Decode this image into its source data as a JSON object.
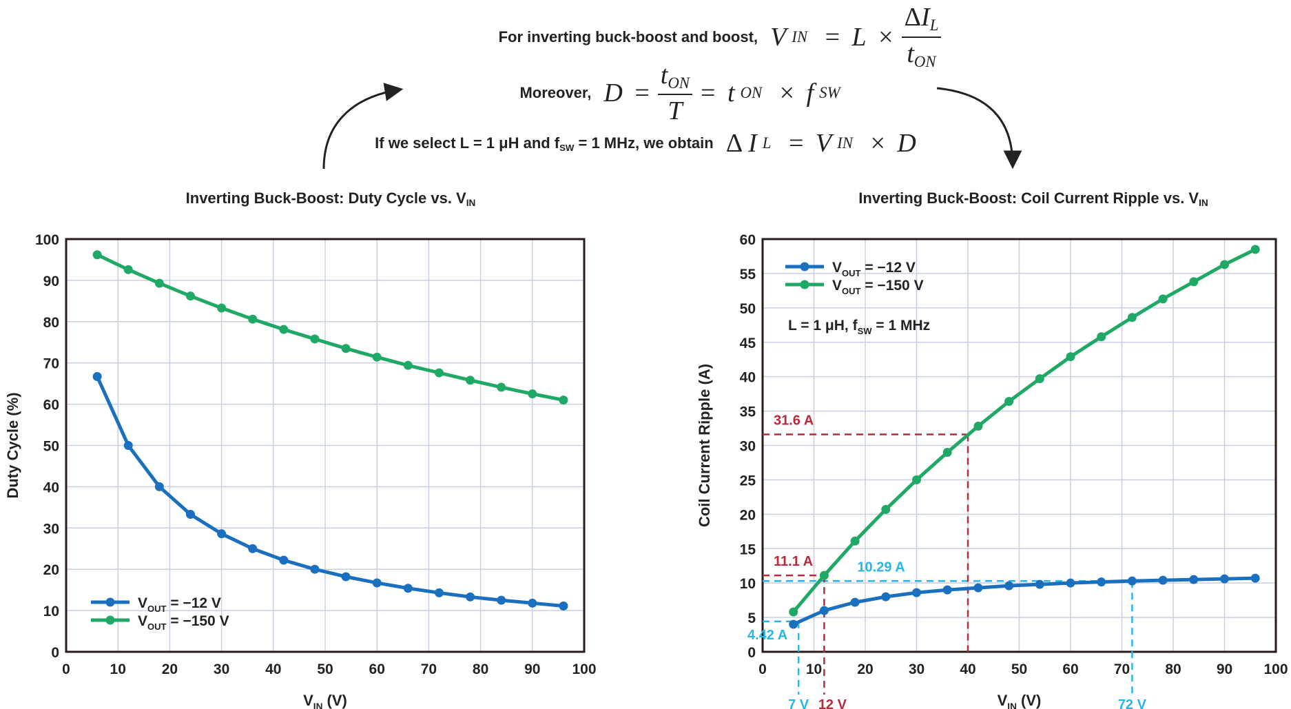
{
  "equations": {
    "line1_text": "For inverting buck-boost and boost,",
    "line2_text": "Moreover,",
    "line3_text_a": "If we select L = 1 μH and f",
    "line3_text_sub": "SW",
    "line3_text_b": " = 1 MHz, we obtain"
  },
  "colors": {
    "series_12": "#1a6fbf",
    "series_150": "#1fa866",
    "annotation_red": "#b52b3a",
    "annotation_blue": "#29b6e6",
    "grid": "#c9cfe0",
    "frame": "#2a1a1a"
  },
  "chart_data": [
    {
      "type": "line",
      "title": "Inverting Buck-Boost: Duty Cycle vs. V",
      "title_sub": "IN",
      "xlabel": "V",
      "xlabel_sub": "IN",
      "xlabel_suffix": " (V)",
      "ylabel": "Duty Cycle (%)",
      "xlim": [
        0,
        100
      ],
      "ylim": [
        0,
        100
      ],
      "xticks": [
        0,
        10,
        20,
        30,
        40,
        50,
        60,
        70,
        80,
        90,
        100
      ],
      "yticks": [
        0,
        10,
        20,
        30,
        40,
        50,
        60,
        70,
        80,
        90,
        100
      ],
      "grid": true,
      "legend_position": "bottom-left",
      "series": [
        {
          "name": "V",
          "name_sub": "OUT",
          "name_suffix": " = −12 V",
          "color": "#1a6fbf",
          "x": [
            6,
            12,
            18,
            24,
            30,
            36,
            42,
            48,
            54,
            60,
            66,
            72,
            78,
            84,
            90,
            96
          ],
          "y": [
            66.7,
            50,
            40,
            33.3,
            28.6,
            25,
            22.2,
            20,
            18.2,
            16.7,
            15.4,
            14.3,
            13.3,
            12.5,
            11.8,
            11.1
          ]
        },
        {
          "name": "V",
          "name_sub": "OUT",
          "name_suffix": " = −150 V",
          "color": "#1fa866",
          "x": [
            6,
            12,
            18,
            24,
            30,
            36,
            42,
            48,
            54,
            60,
            66,
            72,
            78,
            84,
            90,
            96
          ],
          "y": [
            96.2,
            92.6,
            89.3,
            86.2,
            83.3,
            80.6,
            78.1,
            75.8,
            73.5,
            71.4,
            69.4,
            67.6,
            65.8,
            64.1,
            62.5,
            61
          ]
        }
      ]
    },
    {
      "type": "line",
      "title": "Inverting Buck-Boost: Coil Current Ripple vs. V",
      "title_sub": "IN",
      "xlabel": "V",
      "xlabel_sub": "IN",
      "xlabel_suffix": " (V)",
      "ylabel": "Coil Current Ripple (A)",
      "xlim": [
        0,
        100
      ],
      "ylim": [
        0,
        60
      ],
      "xticks": [
        0,
        10,
        20,
        30,
        40,
        50,
        60,
        70,
        80,
        90,
        100
      ],
      "yticks": [
        0,
        5,
        10,
        15,
        20,
        25,
        30,
        35,
        40,
        45,
        50,
        55,
        60
      ],
      "grid": true,
      "legend_position": "top-left",
      "note": "L = 1 μH, f",
      "note_sub": "SW",
      "note_suffix": " = 1 MHz",
      "series": [
        {
          "name": "V",
          "name_sub": "OUT",
          "name_suffix": " = −12 V",
          "color": "#1a6fbf",
          "x": [
            6,
            12,
            18,
            24,
            30,
            36,
            42,
            48,
            54,
            60,
            66,
            72,
            78,
            84,
            90,
            96
          ],
          "y": [
            4.0,
            6.0,
            7.2,
            8.0,
            8.6,
            9.0,
            9.3,
            9.6,
            9.8,
            10.0,
            10.15,
            10.3,
            10.4,
            10.5,
            10.6,
            10.7
          ]
        },
        {
          "name": "V",
          "name_sub": "OUT",
          "name_suffix": " = −150 V",
          "color": "#1fa866",
          "x": [
            6,
            12,
            18,
            24,
            30,
            36,
            42,
            48,
            54,
            60,
            66,
            72,
            78,
            84,
            90,
            96
          ],
          "y": [
            5.8,
            11.1,
            16.1,
            20.7,
            25.0,
            29.0,
            32.8,
            36.4,
            39.7,
            42.9,
            45.8,
            48.6,
            51.3,
            53.8,
            56.3,
            58.5
          ]
        }
      ],
      "annotations": [
        {
          "label": "31.6 A",
          "color": "red",
          "x": 40,
          "y": 31.6
        },
        {
          "label": "11.1 A",
          "color": "red",
          "x": 12,
          "y": 11.1
        },
        {
          "label": "10.29 A",
          "color": "blue",
          "x": 72,
          "y": 10.29
        },
        {
          "label": "4.42 A",
          "color": "blue",
          "x": 7,
          "y": 4.42
        }
      ],
      "x_callouts": [
        {
          "label": "7 V",
          "color": "blue",
          "x": 7
        },
        {
          "label": "12 V",
          "color": "red",
          "x": 12
        },
        {
          "label": "72 V",
          "color": "blue",
          "x": 72
        }
      ]
    }
  ]
}
